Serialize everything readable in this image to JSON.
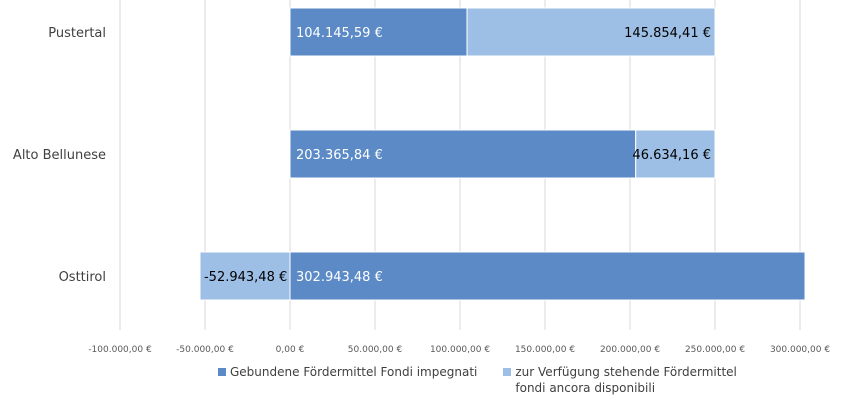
{
  "chart_data": {
    "type": "bar",
    "orientation": "horizontal",
    "stacked": true,
    "categories": [
      "Pustertal",
      "Alto Bellunese",
      "Osttirol"
    ],
    "series": [
      {
        "name": "Gebundene Fördermittel Fondi impegnati",
        "values": [
          104145.59,
          203365.84,
          302943.48
        ],
        "labels": [
          "104.145,59 €",
          "203.365,84 €",
          "302.943,48 €"
        ],
        "color": "#5b8ac6"
      },
      {
        "name": "zur Verfügung stehende  Fördermittel\nfondi ancora disponibili",
        "values": [
          145854.41,
          46634.16,
          -52943.48
        ],
        "labels": [
          "145.854,41 €",
          "46.634,16 €",
          "-52.943,48 €"
        ],
        "color": "#9dbfe5"
      }
    ],
    "xlim": [
      -100000,
      300000
    ],
    "xticks": [
      -100000,
      -50000,
      0,
      50000,
      100000,
      150000,
      200000,
      250000,
      300000
    ],
    "xtick_labels": [
      "-100.000,00 €",
      "-50.000,00 €",
      "0,00 €",
      "50.000,00 €",
      "100.000,00 €",
      "150.000,00 €",
      "200.000,00 €",
      "250.000,00 €",
      "300.000,00 €"
    ],
    "grid": "vertical",
    "legend": "bottom",
    "title": "",
    "xlabel": "",
    "ylabel": ""
  }
}
